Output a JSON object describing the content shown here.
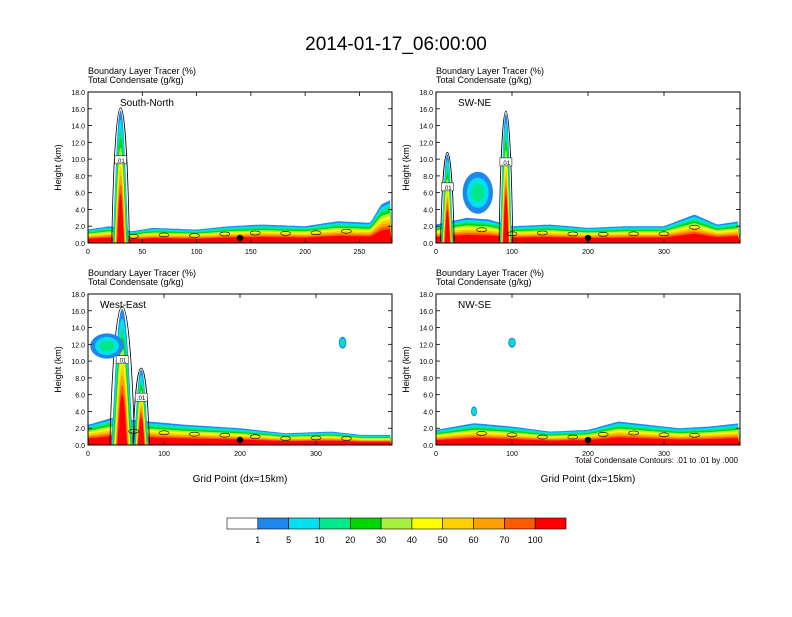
{
  "page": {
    "title": "2014-01-17_06:00:00",
    "label_tracer": "Boundary Layer Tracer",
    "label_tracer_unit": "(%)",
    "label_condensate": "Total Condensate",
    "label_condensate_unit": "(g/kg)",
    "x_axis_label": "Grid Point (dx=15km)",
    "y_axis_label": "Height (km)",
    "contour_note": "Total Condensate Contours: .01 to .01 by .000",
    "contour_label": ".01"
  },
  "colors": {
    "levels": [
      "#ffffff",
      "#1e88f0",
      "#00e0f0",
      "#00e88a",
      "#00d800",
      "#a8f040",
      "#ffff00",
      "#ffd000",
      "#ffa000",
      "#ff5a00",
      "#ff0000"
    ],
    "colorbar_labels": [
      "1",
      "5",
      "10",
      "20",
      "30",
      "40",
      "50",
      "60",
      "70",
      "100"
    ]
  },
  "chart_data": [
    {
      "type": "heatmap",
      "panel_label": "South-North",
      "xlabel": "",
      "ylabel": "Height (km)",
      "xlim": [
        0,
        280
      ],
      "ylim": [
        0,
        18
      ],
      "xticks": [
        "0",
        "50",
        "100",
        "150",
        "200",
        "250"
      ],
      "xtick_values": [
        0,
        50,
        100,
        150,
        200,
        250
      ],
      "yticks": [
        "0.0",
        "2.0",
        "4.0",
        "6.0",
        "8.0",
        "10.0",
        "12.0",
        "14.0",
        "16.0",
        "18.0"
      ],
      "ytick_values": [
        0,
        2,
        4,
        6,
        8,
        10,
        12,
        14,
        16,
        18
      ],
      "marker_x": 140,
      "tracer_profile": {
        "base_top": [
          [
            0,
            1.6
          ],
          [
            20,
            2.0
          ],
          [
            40,
            1.4
          ],
          [
            60,
            1.8
          ],
          [
            100,
            1.6
          ],
          [
            130,
            2.0
          ],
          [
            160,
            2.2
          ],
          [
            200,
            2.0
          ],
          [
            230,
            2.6
          ],
          [
            260,
            2.4
          ],
          [
            270,
            4.6
          ],
          [
            280,
            5.2
          ]
        ],
        "plumes": [
          {
            "x": 30,
            "width": 9,
            "top": 15.8
          }
        ],
        "blobs": []
      }
    },
    {
      "type": "heatmap",
      "panel_label": "SW-NE",
      "xlabel": "",
      "ylabel": "Height (km)",
      "xlim": [
        0,
        400
      ],
      "ylim": [
        0,
        18
      ],
      "xticks": [
        "0",
        "100",
        "200",
        "300"
      ],
      "xtick_values": [
        0,
        100,
        200,
        300
      ],
      "yticks": [
        "0.0",
        "2.0",
        "4.0",
        "6.0",
        "8.0",
        "10.0",
        "12.0",
        "14.0",
        "16.0",
        "18.0"
      ],
      "ytick_values": [
        0,
        2,
        4,
        6,
        8,
        10,
        12,
        14,
        16,
        18
      ],
      "marker_x": 200,
      "tracer_profile": {
        "base_top": [
          [
            0,
            2.2
          ],
          [
            40,
            3.0
          ],
          [
            70,
            2.8
          ],
          [
            100,
            2.0
          ],
          [
            150,
            2.2
          ],
          [
            200,
            1.8
          ],
          [
            250,
            2.0
          ],
          [
            300,
            2.0
          ],
          [
            340,
            3.4
          ],
          [
            370,
            2.2
          ],
          [
            400,
            2.6
          ]
        ],
        "plumes": [
          {
            "x": 15,
            "width": 10,
            "top": 10.6
          },
          {
            "x": 92,
            "width": 10,
            "top": 15.4
          }
        ],
        "blobs": [
          {
            "x": 55,
            "y": 6.0,
            "w": 40,
            "h": 5.0
          }
        ]
      }
    },
    {
      "type": "heatmap",
      "panel_label": "West-East",
      "xlabel": "Grid Point (dx=15km)",
      "ylabel": "Height (km)",
      "xlim": [
        0,
        400
      ],
      "ylim": [
        0,
        18
      ],
      "xticks": [
        "0",
        "100",
        "200",
        "300"
      ],
      "xtick_values": [
        0,
        100,
        200,
        300
      ],
      "yticks": [
        "0.0",
        "2.0",
        "4.0",
        "6.0",
        "8.0",
        "10.0",
        "12.0",
        "14.0",
        "16.0",
        "18.0"
      ],
      "ytick_values": [
        0,
        2,
        4,
        6,
        8,
        10,
        12,
        14,
        16,
        18
      ],
      "marker_x": 200,
      "tracer_profile": {
        "base_top": [
          [
            0,
            2.4
          ],
          [
            30,
            3.2
          ],
          [
            80,
            2.8
          ],
          [
            130,
            2.4
          ],
          [
            200,
            2.0
          ],
          [
            260,
            1.4
          ],
          [
            320,
            1.6
          ],
          [
            360,
            1.2
          ],
          [
            400,
            1.2
          ]
        ],
        "plumes": [
          {
            "x": 45,
            "width": 18,
            "top": 16.2
          },
          {
            "x": 70,
            "width": 12,
            "top": 9.0
          }
        ],
        "blobs": [
          {
            "x": 25,
            "y": 11.8,
            "w": 44,
            "h": 3.0
          },
          {
            "x": 335,
            "y": 12.2,
            "w": 10,
            "h": 1.4
          }
        ]
      }
    },
    {
      "type": "heatmap",
      "panel_label": "NW-SE",
      "xlabel": "Grid Point (dx=15km)",
      "ylabel": "Height (km)",
      "xlim": [
        0,
        400
      ],
      "ylim": [
        0,
        18
      ],
      "xticks": [
        "0",
        "100",
        "200",
        "300"
      ],
      "xtick_values": [
        0,
        100,
        200,
        300
      ],
      "yticks": [
        "0.0",
        "2.0",
        "4.0",
        "6.0",
        "8.0",
        "10.0",
        "12.0",
        "14.0",
        "16.0",
        "18.0"
      ],
      "ytick_values": [
        0,
        2,
        4,
        6,
        8,
        10,
        12,
        14,
        16,
        18
      ],
      "marker_x": 200,
      "tracer_profile": {
        "base_top": [
          [
            0,
            1.8
          ],
          [
            50,
            2.6
          ],
          [
            100,
            2.2
          ],
          [
            150,
            1.6
          ],
          [
            200,
            1.8
          ],
          [
            240,
            2.8
          ],
          [
            280,
            2.4
          ],
          [
            320,
            2.0
          ],
          [
            360,
            2.2
          ],
          [
            400,
            2.6
          ]
        ],
        "plumes": [],
        "blobs": [
          {
            "x": 100,
            "y": 12.2,
            "w": 10,
            "h": 1.2
          },
          {
            "x": 50,
            "y": 4.0,
            "w": 8,
            "h": 1.2
          }
        ]
      }
    }
  ]
}
